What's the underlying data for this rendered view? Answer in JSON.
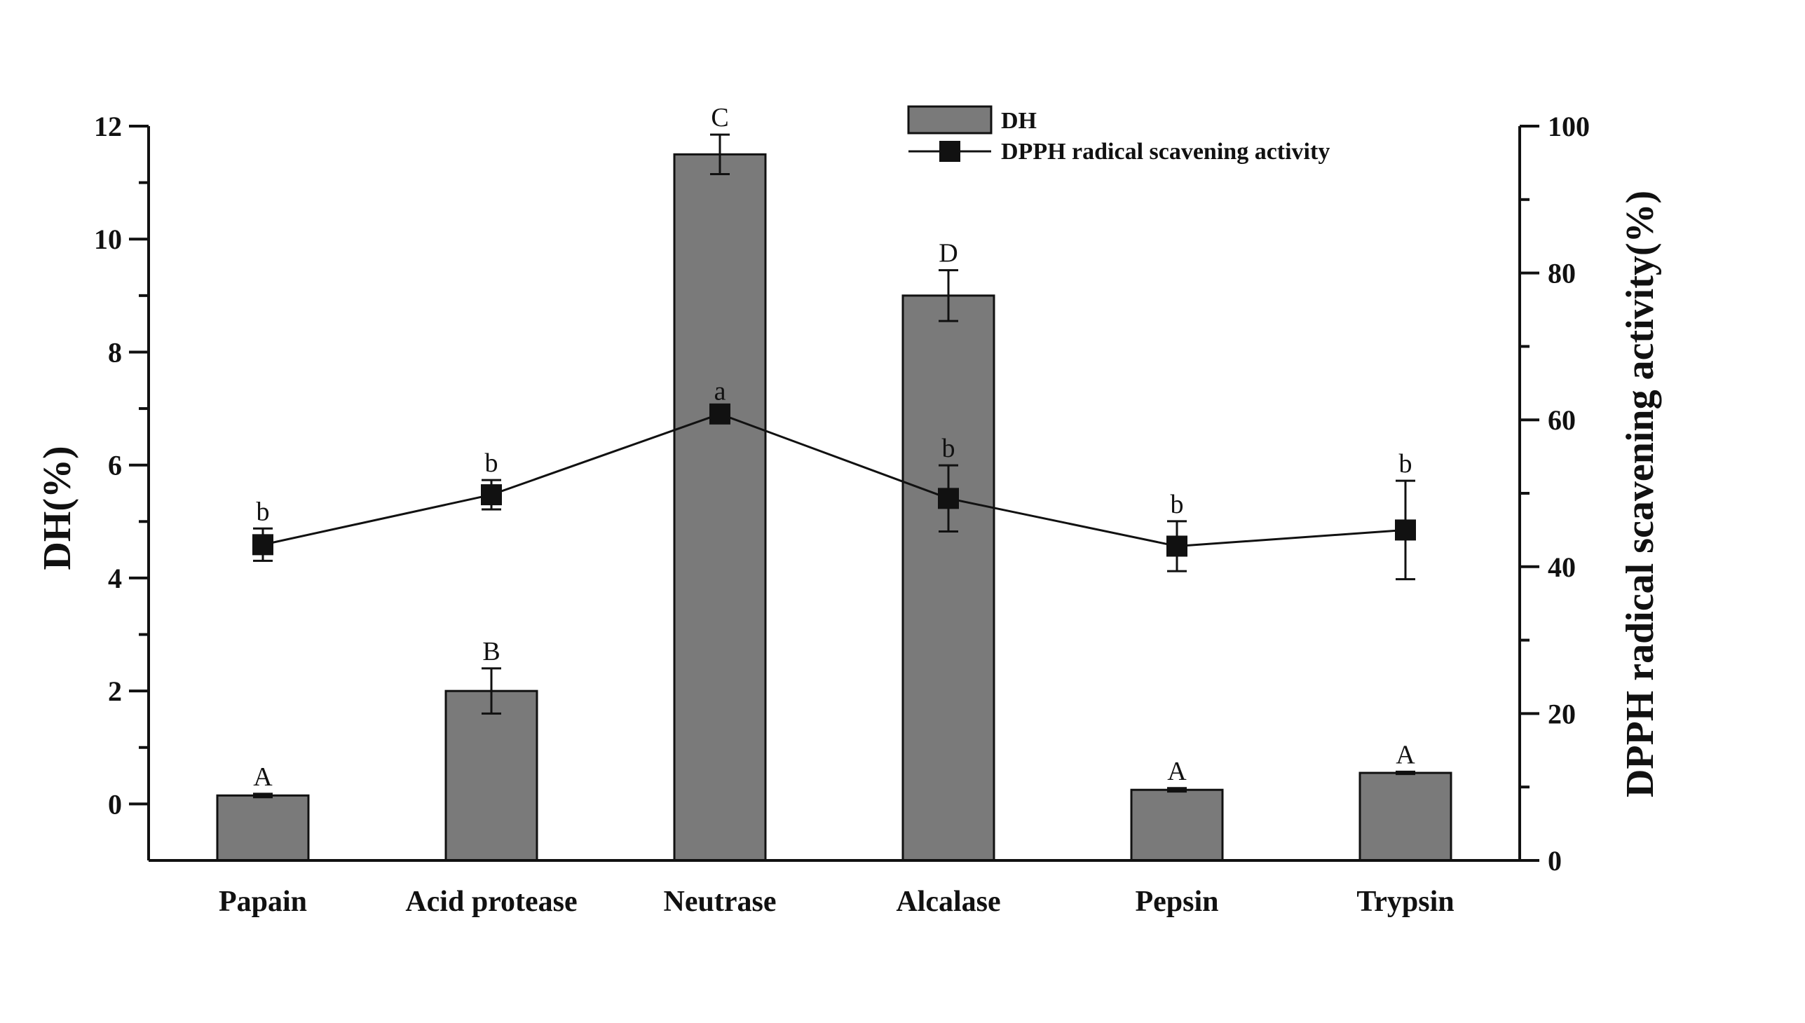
{
  "chart_data": {
    "type": "bar",
    "categories": [
      "Papain",
      "Acid protease",
      "Neutrase",
      "Alcalase",
      "Pepsin",
      "Trypsin"
    ],
    "series": [
      {
        "name": "DH",
        "kind": "bar",
        "axis": "left",
        "values": [
          0.15,
          2.0,
          11.5,
          9.0,
          0.25,
          0.55
        ],
        "errors": [
          0.03,
          0.4,
          0.35,
          0.45,
          0.03,
          0.02
        ],
        "labels": [
          "A",
          "B",
          "C",
          "D",
          "A",
          "A"
        ]
      },
      {
        "name": "DPPH radical scavening activity",
        "kind": "line",
        "axis": "right",
        "values": [
          43.0,
          49.8,
          60.8,
          49.3,
          42.8,
          45.0
        ],
        "errors": [
          2.2,
          2.0,
          0.8,
          4.5,
          3.4,
          6.7
        ],
        "labels": [
          "b",
          "b",
          "a",
          "b",
          "b",
          "b"
        ]
      }
    ],
    "ylabel": "DH(%)",
    "y2label": "DPPH radical scavening activity(%)",
    "ylim": [
      -1,
      12
    ],
    "y2lim": [
      0,
      100
    ],
    "yticks": [
      "0",
      "2",
      "4",
      "6",
      "8",
      "10",
      "12"
    ],
    "y2ticks": [
      "0",
      "20",
      "40",
      "60",
      "80",
      "100"
    ],
    "colors": {
      "bar": "#7a7a7a",
      "line": "#111111"
    },
    "legend_position": "top-right"
  }
}
